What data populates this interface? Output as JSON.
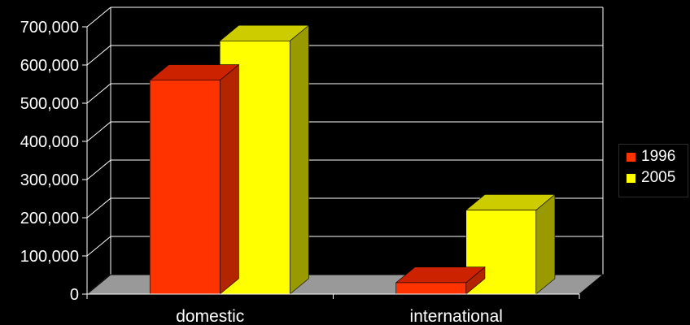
{
  "chart_data": {
    "type": "bar",
    "categories": [
      "domestic",
      "international"
    ],
    "series": [
      {
        "name": "1996",
        "values": [
          560000,
          30000
        ],
        "color": "#ff3300",
        "top_color": "#cc2200",
        "side_color": "#b32400"
      },
      {
        "name": "2005",
        "values": [
          663000,
          220000
        ],
        "color": "#ffff00",
        "top_color": "#cccc00",
        "side_color": "#999900"
      }
    ],
    "yticks": [
      "0",
      "100,000",
      "200,000",
      "300,000",
      "400,000",
      "500,000",
      "600,000",
      "700,000"
    ],
    "ylim": [
      0,
      700000
    ],
    "ystep": 100000,
    "grid": true,
    "legend_position": "right",
    "background_color": "#000000",
    "floor_color": "#999999"
  }
}
